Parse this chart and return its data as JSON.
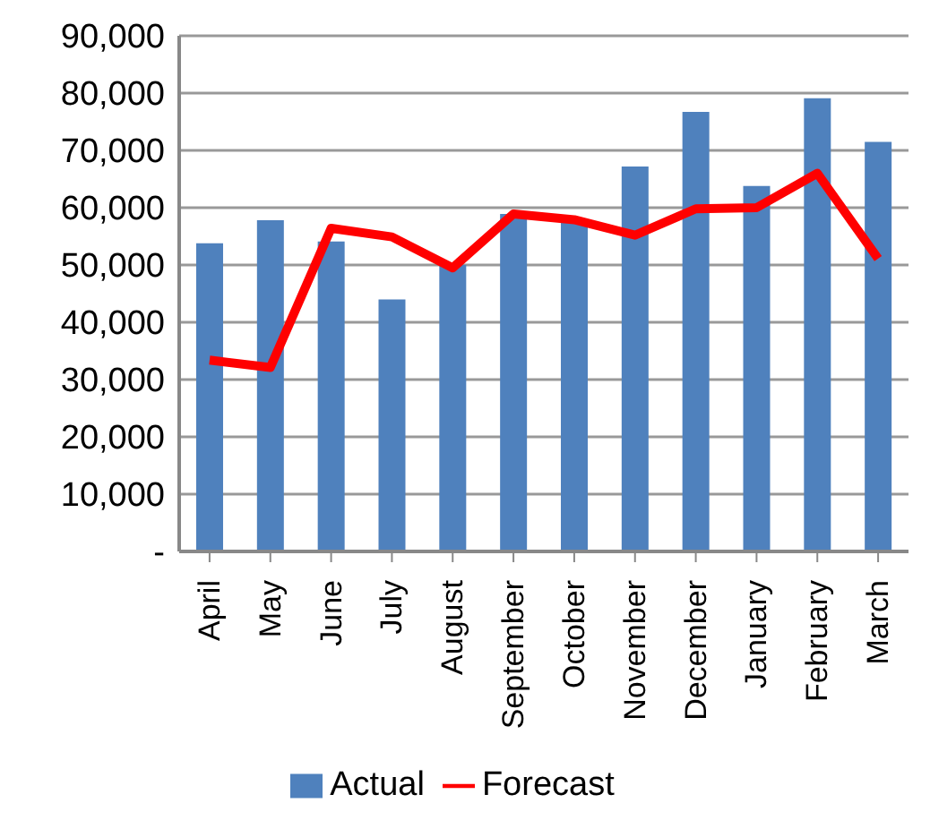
{
  "chart_data": {
    "type": "bar",
    "categories": [
      "April",
      "May",
      "June",
      "July",
      "August",
      "September",
      "October",
      "November",
      "December",
      "January",
      "February",
      "March"
    ],
    "series": [
      {
        "name": "Actual",
        "color": "#4f81bd",
        "values": [
          53800,
          57800,
          54100,
          44000,
          50000,
          58900,
          58000,
          67200,
          76700,
          63800,
          79100,
          71500
        ]
      },
      {
        "name": "Forecast",
        "type": "line",
        "color": "#ff0000",
        "values": [
          33400,
          32100,
          56400,
          54900,
          49500,
          58900,
          57900,
          55200,
          59800,
          60000,
          66000,
          51100
        ]
      }
    ],
    "ylim": [
      0,
      90000
    ],
    "yticks": [
      {
        "value": 0,
        "label": "-"
      },
      {
        "value": 10000,
        "label": "10,000"
      },
      {
        "value": 20000,
        "label": "20,000"
      },
      {
        "value": 30000,
        "label": "30,000"
      },
      {
        "value": 40000,
        "label": "40,000"
      },
      {
        "value": 50000,
        "label": "50,000"
      },
      {
        "value": 60000,
        "label": "60,000"
      },
      {
        "value": 70000,
        "label": "70,000"
      },
      {
        "value": 80000,
        "label": "80,000"
      },
      {
        "value": 90000,
        "label": "90,000"
      }
    ],
    "grid": "y",
    "legend": "bottom",
    "marker": "none"
  }
}
